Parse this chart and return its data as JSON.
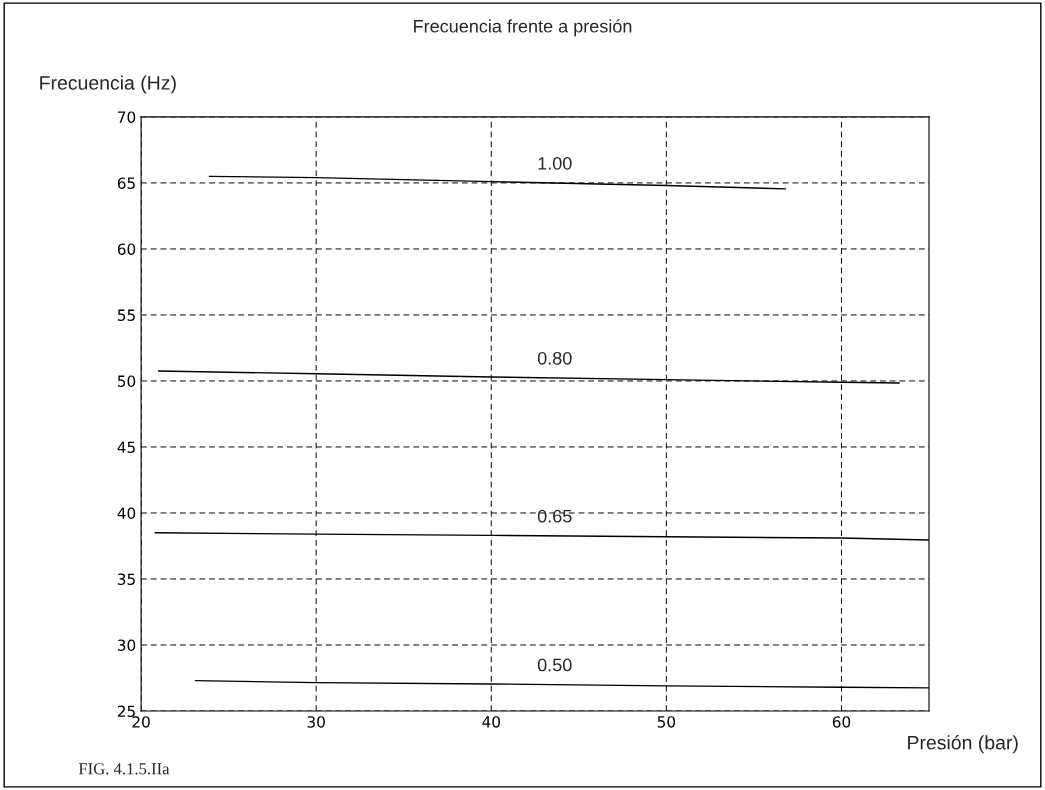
{
  "chart_data": {
    "type": "line",
    "title": "Frecuencia frente a presión",
    "xlabel": "Presión (bar)",
    "ylabel": "Frecuencia (Hz)",
    "annotations": [
      "FIG. 4.1.5.IIa"
    ],
    "xlim": [
      20,
      65
    ],
    "xticks": [
      20,
      30,
      40,
      50,
      60
    ],
    "ylim": [
      25,
      70
    ],
    "yticks": [
      25,
      30,
      35,
      40,
      45,
      50,
      55,
      60,
      65,
      70
    ],
    "grid": true,
    "legend": false,
    "marker": "none",
    "line_style": "solid",
    "series": [
      {
        "name": "1.00",
        "color": "#000000",
        "x": [
          23.9,
          30,
          40,
          50,
          56.8
        ],
        "values": [
          65.5,
          65.4,
          65.1,
          64.8,
          64.55
        ]
      },
      {
        "name": "0.80",
        "color": "#000000",
        "x": [
          21,
          30,
          40,
          50,
          60,
          63.3
        ],
        "values": [
          50.75,
          50.55,
          50.3,
          50.1,
          49.9,
          49.85
        ]
      },
      {
        "name": "0.65",
        "color": "#000000",
        "x": [
          20.8,
          30,
          40,
          50,
          60,
          65
        ],
        "values": [
          38.5,
          38.4,
          38.3,
          38.2,
          38.1,
          37.95
        ]
      },
      {
        "name": "0.50",
        "color": "#000000",
        "x": [
          23.1,
          30,
          40,
          50,
          60,
          65
        ],
        "values": [
          27.3,
          27.15,
          27.05,
          26.9,
          26.8,
          26.75
        ]
      }
    ]
  }
}
